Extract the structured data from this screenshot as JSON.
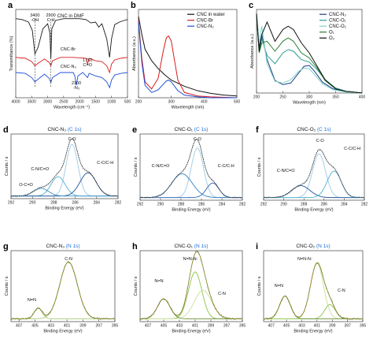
{
  "chart_data": [
    {
      "type": "line",
      "panel": "a",
      "xlabel": "Wavelength (cm⁻¹)",
      "ylabel": "Transmittance (%)",
      "xlim": [
        4000,
        500
      ],
      "xticks": [
        4000,
        3500,
        3000,
        2500,
        2000,
        1500,
        1000,
        500
      ],
      "legend_position": "inline",
      "series": [
        {
          "name": "CNC in DMF",
          "color": "#1a1a1a",
          "offset": 0.72,
          "x": [
            4000,
            3800,
            3600,
            3480,
            3400,
            3300,
            3150,
            3000,
            2930,
            2900,
            2870,
            2750,
            2500,
            2200,
            2000,
            1800,
            1650,
            1500,
            1400,
            1300,
            1150,
            1060,
            1000,
            900,
            750,
            600,
            500
          ],
          "y": [
            0.22,
            0.21,
            0.18,
            0.08,
            -0.2,
            -0.12,
            0.1,
            0.16,
            0.05,
            -0.26,
            0.1,
            0.2,
            0.22,
            0.22,
            0.22,
            0.21,
            0.17,
            0.18,
            0.12,
            0.16,
            -0.02,
            -0.24,
            -0.02,
            0.15,
            0.18,
            0.2,
            0.21
          ]
        },
        {
          "name": "CNC-Br",
          "color": "#d81b1b",
          "offset": 0.38,
          "x": [
            4000,
            3700,
            3500,
            3400,
            3300,
            3100,
            2950,
            2900,
            2850,
            2600,
            2200,
            1800,
            1750,
            1700,
            1500,
            1300,
            1150,
            1060,
            1000,
            900,
            700,
            500
          ],
          "y": [
            0.1,
            0.09,
            0.05,
            0.0,
            0.03,
            0.08,
            0.04,
            0.0,
            0.06,
            0.1,
            0.1,
            0.09,
            0.02,
            0.09,
            0.06,
            0.05,
            0.0,
            -0.08,
            0.02,
            0.07,
            0.09,
            0.1
          ]
        },
        {
          "name": "CNC-N₃",
          "color": "#1d4fd8",
          "offset": 0.18,
          "x": [
            4000,
            3700,
            3500,
            3400,
            3300,
            3100,
            2950,
            2900,
            2850,
            2600,
            2200,
            2150,
            2100,
            2050,
            1900,
            1750,
            1700,
            1500,
            1300,
            1150,
            1060,
            1000,
            900,
            700,
            500
          ],
          "y": [
            0.12,
            0.11,
            0.06,
            0.01,
            0.04,
            0.1,
            0.05,
            0.0,
            0.06,
            0.12,
            0.12,
            0.08,
            -0.03,
            0.08,
            0.12,
            0.06,
            0.11,
            0.08,
            0.06,
            0.01,
            -0.06,
            0.03,
            0.09,
            0.11,
            0.12
          ]
        }
      ],
      "annotations": [
        {
          "text": "3400",
          "x": 3400
        },
        {
          "text": "-OH",
          "x": 3400
        },
        {
          "text": "2900",
          "x": 2900
        },
        {
          "text": "C-H",
          "x": 2900
        },
        {
          "text": "CNC-Br",
          "x": 2600
        },
        {
          "text": "1750",
          "x": 1750
        },
        {
          "text": "C=O",
          "x": 1750
        },
        {
          "text": "CNC-N₃",
          "x": 2600
        },
        {
          "text": "2100",
          "x": 2100
        },
        {
          "text": "-N₃",
          "x": 2100
        }
      ]
    },
    {
      "type": "line",
      "panel": "b",
      "xlabel": "Wavelength (nm)",
      "ylabel": "Absorbance (a.u.)",
      "xlim": [
        200,
        500
      ],
      "xticks": [
        200,
        300,
        400,
        500
      ],
      "legend_position": "top-right",
      "series": [
        {
          "name": "CNC in water",
          "color": "#111111",
          "x": [
            200,
            210,
            220,
            240,
            260,
            280,
            300,
            340,
            380,
            420,
            460,
            500
          ],
          "y": [
            0.92,
            0.72,
            0.55,
            0.42,
            0.33,
            0.26,
            0.2,
            0.13,
            0.08,
            0.05,
            0.03,
            0.02
          ]
        },
        {
          "name": "CNC-Br",
          "color": "#d81b1b",
          "x": [
            200,
            210,
            220,
            240,
            260,
            275,
            285,
            292,
            300,
            310,
            320,
            340,
            380,
            420,
            500
          ],
          "y": [
            0.88,
            0.45,
            0.18,
            0.1,
            0.22,
            0.52,
            0.68,
            0.7,
            0.64,
            0.42,
            0.2,
            0.06,
            0.02,
            0.01,
            0.0
          ]
        },
        {
          "name": "CNC-N₂",
          "color": "#1d4fd8",
          "x": [
            200,
            210,
            220,
            240,
            260,
            275,
            285,
            292,
            300,
            310,
            320,
            340,
            380,
            420,
            500
          ],
          "y": [
            0.86,
            0.4,
            0.14,
            0.06,
            0.09,
            0.15,
            0.19,
            0.2,
            0.18,
            0.13,
            0.08,
            0.03,
            0.01,
            0.0,
            0.0
          ]
        }
      ]
    },
    {
      "type": "line",
      "panel": "c",
      "xlabel": "Wavelength (nm)",
      "ylabel": "Absorbance (a.u.)",
      "xlim": [
        200,
        400
      ],
      "xticks": [
        200,
        250,
        300,
        350,
        400
      ],
      "legend_position": "top-right",
      "series": [
        {
          "name": "CNC-N₃",
          "color": "#1b3f8b",
          "x": [
            200,
            205,
            210,
            220,
            235,
            250,
            265,
            280,
            290,
            300,
            310,
            325,
            345,
            370,
            400
          ],
          "y": [
            0.95,
            0.55,
            0.7,
            0.4,
            0.15,
            0.1,
            0.12,
            0.24,
            0.32,
            0.33,
            0.26,
            0.13,
            0.05,
            0.02,
            0.0
          ]
        },
        {
          "name": "CNC-O₁",
          "color": "#2a9d8f",
          "x": [
            200,
            205,
            210,
            220,
            235,
            250,
            260,
            270,
            285,
            300,
            315,
            330,
            350,
            370,
            400
          ],
          "y": [
            0.92,
            0.5,
            0.65,
            0.45,
            0.35,
            0.48,
            0.52,
            0.5,
            0.4,
            0.37,
            0.28,
            0.16,
            0.06,
            0.02,
            0.0
          ]
        },
        {
          "name": "CNC-O₂",
          "color": "#7fd3c7",
          "x": [
            200,
            205,
            210,
            220,
            235,
            250,
            265,
            280,
            290,
            300,
            310,
            325,
            345,
            370,
            400
          ],
          "y": [
            0.94,
            0.6,
            0.8,
            0.35,
            0.14,
            0.12,
            0.16,
            0.26,
            0.3,
            0.29,
            0.22,
            0.11,
            0.04,
            0.01,
            0.0
          ]
        },
        {
          "name": "O₁",
          "color": "#2e7d32",
          "x": [
            200,
            205,
            210,
            220,
            235,
            250,
            260,
            270,
            285,
            300,
            315,
            330,
            350,
            370,
            400
          ],
          "y": [
            0.93,
            0.48,
            0.6,
            0.62,
            0.5,
            0.62,
            0.66,
            0.62,
            0.48,
            0.42,
            0.3,
            0.15,
            0.05,
            0.02,
            0.0
          ]
        },
        {
          "name": "O₂",
          "color": "#111111",
          "x": [
            200,
            205,
            210,
            220,
            235,
            250,
            260,
            270,
            285,
            300,
            315,
            330,
            350,
            370,
            400
          ],
          "y": [
            0.95,
            0.5,
            0.7,
            0.85,
            0.62,
            0.76,
            0.8,
            0.76,
            0.6,
            0.48,
            0.32,
            0.16,
            0.05,
            0.02,
            0.0
          ]
        }
      ]
    },
    {
      "type": "line",
      "panel": "d",
      "title": "CNC-N₃ (C 1s)",
      "xlabel": "Binding Energy (eV)",
      "ylabel": "Counts / s",
      "xlim": [
        292,
        282
      ],
      "xticks": [
        292,
        290,
        288,
        286,
        284,
        282
      ],
      "peaks": [
        {
          "label": "C-O",
          "center": 286.3,
          "height": 0.8,
          "sigma": 0.55,
          "color": "#9ec9e8"
        },
        {
          "label": "C-N/C=O",
          "center": 287.6,
          "height": 0.3,
          "sigma": 0.65,
          "color": "#4fb0cf"
        },
        {
          "label": "C-C/C-H",
          "center": 284.8,
          "height": 0.36,
          "sigma": 0.75,
          "color": "#1f4e9a"
        },
        {
          "label": "O-C=O",
          "center": 289.2,
          "height": 0.12,
          "sigma": 0.7,
          "color": "#3a8fc4"
        }
      ],
      "annotations": [
        {
          "text": "C-O",
          "x": 286.3
        },
        {
          "text": "C-N/C=O",
          "x": 289.3
        },
        {
          "text": "C-C/C-H",
          "x": 283.2
        },
        {
          "text": "O-C=O",
          "x": 290.6
        }
      ]
    },
    {
      "type": "line",
      "panel": "e",
      "title": "CNC-O₁ (C 1s)",
      "xlabel": "Binding Energy (eV)",
      "ylabel": "Counts / s",
      "xlim": [
        292,
        282
      ],
      "xticks": [
        292,
        290,
        288,
        286,
        284,
        282
      ],
      "peaks": [
        {
          "label": "C-O",
          "center": 286.4,
          "height": 0.75,
          "sigma": 0.6,
          "color": "#9ec9e8"
        },
        {
          "label": "C-N/C=O",
          "center": 287.9,
          "height": 0.36,
          "sigma": 1.0,
          "color": "#2a7fc4"
        },
        {
          "label": "C-C/C-H",
          "center": 284.9,
          "height": 0.22,
          "sigma": 0.6,
          "color": "#2f62b8"
        }
      ],
      "annotations": [
        {
          "text": "C-O",
          "x": 286.4
        },
        {
          "text": "C-N/C=O",
          "x": 290.0
        },
        {
          "text": "C-C/C-H",
          "x": 283.6
        }
      ]
    },
    {
      "type": "line",
      "panel": "f",
      "title": "CNC-O₂ (C 1s)",
      "xlabel": "Binding Energy (eV)",
      "ylabel": "Counts / s",
      "xlim": [
        292,
        282
      ],
      "xticks": [
        292,
        290,
        288,
        286,
        284,
        282
      ],
      "peaks": [
        {
          "label": "C-O",
          "center": 286.5,
          "height": 0.66,
          "sigma": 0.65,
          "color": "#9ec9e8"
        },
        {
          "label": "C-N/C=O",
          "center": 288.3,
          "height": 0.18,
          "sigma": 0.9,
          "color": "#1f4e9a"
        },
        {
          "label": "C-C/C-H",
          "center": 285.0,
          "height": 0.4,
          "sigma": 0.7,
          "color": "#4fb0cf"
        }
      ],
      "annotations": [
        {
          "text": "C-O",
          "x": 286.4
        },
        {
          "text": "C-N/C=O",
          "x": 289.8
        },
        {
          "text": "C-C/C-H",
          "x": 283.2
        }
      ]
    },
    {
      "type": "line",
      "panel": "g",
      "title": "CNC-N₃ (N 1s)",
      "xlabel": "Binding Energy (eV)",
      "ylabel": "Counts / s",
      "xlim": [
        408,
        395
      ],
      "xticks": [
        407,
        405,
        403,
        401,
        399,
        397,
        395
      ],
      "peaks": [
        {
          "label": "C-N",
          "center": 400.8,
          "height": 0.8,
          "sigma": 1.1,
          "color": "#a8c97a"
        },
        {
          "label": "N=N",
          "center": 404.6,
          "height": 0.15,
          "sigma": 0.5,
          "color": "#a8c97a"
        }
      ],
      "annotations": [
        {
          "text": "C-N",
          "x": 400.8
        },
        {
          "text": "N=N",
          "x": 405.4
        }
      ]
    },
    {
      "type": "line",
      "panel": "h",
      "title": "CNC-O₁ (N 1s)",
      "xlabel": "Binding Energy (eV)",
      "ylabel": "Counts / s",
      "xlim": [
        408,
        395
      ],
      "xticks": [
        407,
        405,
        403,
        401,
        399,
        397,
        395
      ],
      "peaks": [
        {
          "label": "N=N-N-",
          "center": 401.0,
          "height": 0.66,
          "sigma": 0.85,
          "color": "#8bc34a"
        },
        {
          "label": "C-N",
          "center": 400.0,
          "height": 0.4,
          "sigma": 1.1,
          "color": "#c9df9a"
        },
        {
          "label": "N=N",
          "center": 405.0,
          "height": 0.28,
          "sigma": 0.8,
          "color": "#6e8f3a"
        }
      ],
      "annotations": [
        {
          "text": "N=N-N-",
          "x": 401.6
        },
        {
          "text": "C-N",
          "x": 397.6
        },
        {
          "text": "N=N",
          "x": 405.6
        }
      ]
    },
    {
      "type": "line",
      "panel": "i",
      "title": "CNC-O₂ (N 1s)",
      "xlabel": "Binding Energy (eV)",
      "ylabel": "Counts / s",
      "xlim": [
        408,
        395
      ],
      "xticks": [
        407,
        405,
        403,
        401,
        399,
        397,
        395
      ],
      "peaks": [
        {
          "label": "N=N-N-",
          "center": 401.0,
          "height": 0.78,
          "sigma": 0.85,
          "color": "#c9df9a"
        },
        {
          "label": "C-N",
          "center": 399.3,
          "height": 0.2,
          "sigma": 0.7,
          "color": "#8bc34a"
        },
        {
          "label": "N=N",
          "center": 405.2,
          "height": 0.32,
          "sigma": 0.7,
          "color": "#6e8f3a"
        }
      ],
      "annotations": [
        {
          "text": "N=N-N-",
          "x": 402.6
        },
        {
          "text": "C-N",
          "x": 397.8
        },
        {
          "text": "N=N",
          "x": 406.0
        }
      ]
    }
  ]
}
